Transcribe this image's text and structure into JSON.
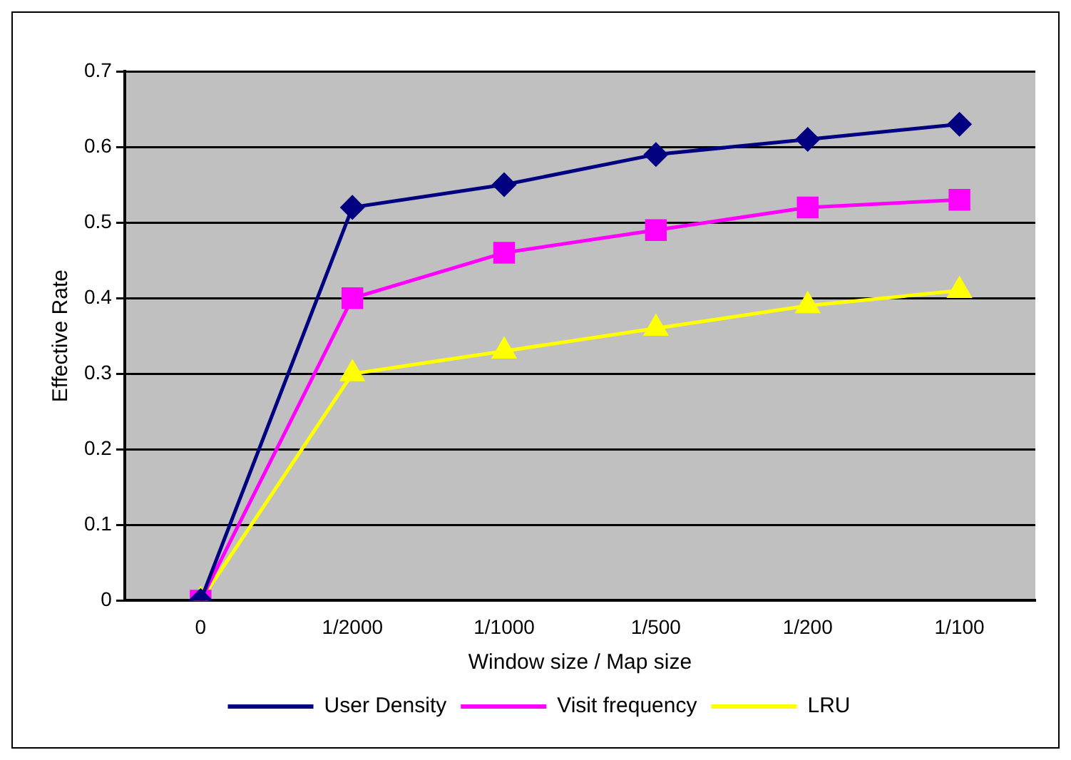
{
  "chart_data": {
    "type": "line",
    "xlabel": "Window size / Map size",
    "ylabel": "Effective Rate",
    "categories": [
      "0",
      "1/2000",
      "1/1000",
      "1/500",
      "1/200",
      "1/100"
    ],
    "ylim": [
      0,
      0.7
    ],
    "yticks": [
      0,
      0.1,
      0.2,
      0.3,
      0.4,
      0.5,
      0.6,
      0.7
    ],
    "grid": "y",
    "legend": "bottom",
    "series": [
      {
        "name": "User Density",
        "color": "#000080",
        "marker": "diamond",
        "values": [
          0,
          0.52,
          0.55,
          0.59,
          0.61,
          0.63
        ]
      },
      {
        "name": "Visit frequency",
        "color": "#ff00ff",
        "marker": "square",
        "values": [
          0,
          0.4,
          0.46,
          0.49,
          0.52,
          0.53
        ]
      },
      {
        "name": "LRU",
        "color": "#ffff00",
        "marker": "triangle",
        "values": [
          0,
          0.3,
          0.33,
          0.36,
          0.39,
          0.41
        ]
      }
    ]
  }
}
